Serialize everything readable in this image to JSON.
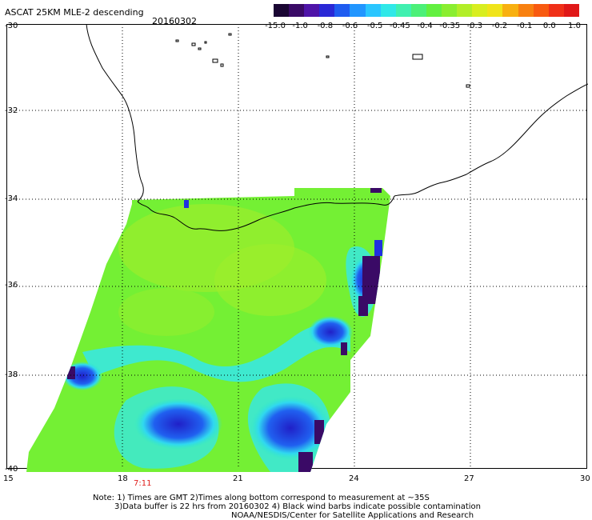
{
  "header": {
    "title": "ASCAT 25KM MLE-2 descending",
    "date": "20160302"
  },
  "colorbar": {
    "labels": [
      "-15.0",
      "-1.0",
      "-0.8",
      "-0.6",
      "-0.5",
      "-0.45",
      "-0.4",
      "-0.35",
      "-0.3",
      "-0.2",
      "-0.1",
      "0.0",
      "1.0"
    ],
    "colors": [
      "#1a0633",
      "#3a0a66",
      "#4f14a8",
      "#2a28d6",
      "#1f5cf0",
      "#2196ff",
      "#2ac6ff",
      "#30e8e8",
      "#40f0b0",
      "#4cf078",
      "#62f040",
      "#8aee30",
      "#b2ee28",
      "#d8ee20",
      "#f0e41a",
      "#f8b010",
      "#f88010",
      "#f85a10",
      "#f03018",
      "#e01818"
    ]
  },
  "axes": {
    "lat_labels": [
      "-30",
      "-32",
      "-34",
      "-36",
      "-38",
      "-40"
    ],
    "lon_labels": [
      "15",
      "18",
      "21",
      "24",
      "27",
      "30"
    ]
  },
  "swath_time": "7:11",
  "notes": {
    "line1": "Note: 1) Times are GMT 2)Times along bottom correspond to measurement at ~35S",
    "line2": "3)Data buffer is 22 hrs from 20160302 4) Black wind barbs indicate possible contamination",
    "line3": "NOAA/NESDIS/Center for Satellite Applications and Research"
  }
}
